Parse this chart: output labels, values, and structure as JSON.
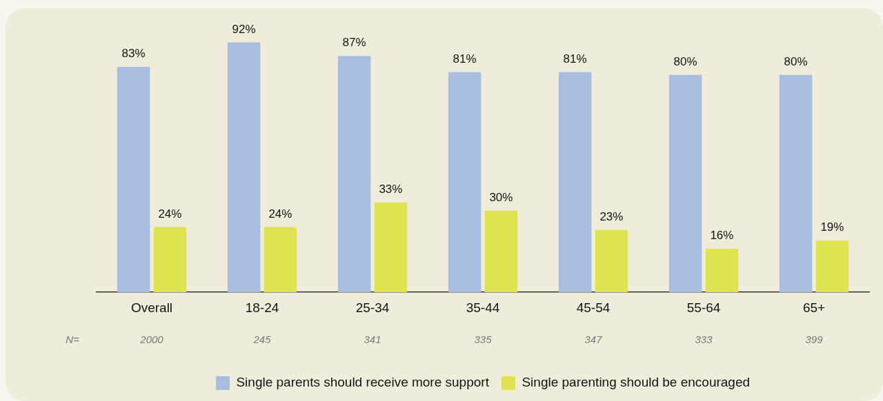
{
  "chart_data": {
    "type": "bar",
    "categories": [
      "Overall",
      "18-24",
      "25-34",
      "35-44",
      "45-54",
      "55-64",
      "65+"
    ],
    "series": [
      {
        "name": "Single parents should receive more support",
        "color": "#a9bde0",
        "values": [
          83,
          92,
          87,
          81,
          81,
          80,
          80
        ],
        "value_labels": [
          "83%",
          "92%",
          "87%",
          "81%",
          "81%",
          "80%",
          "80%"
        ]
      },
      {
        "name": "Single parenting should be encouraged",
        "color": "#e0e350",
        "values": [
          24,
          24,
          33,
          30,
          23,
          16,
          19
        ],
        "value_labels": [
          "24%",
          "24%",
          "33%",
          "30%",
          "23%",
          "16%",
          "19%"
        ]
      }
    ],
    "tick_labels": "x",
    "grid": false,
    "legend": "bottom",
    "annotations": [
      "N=",
      "2000",
      "245",
      "341",
      "335",
      "347",
      "333",
      "399"
    ]
  }
}
